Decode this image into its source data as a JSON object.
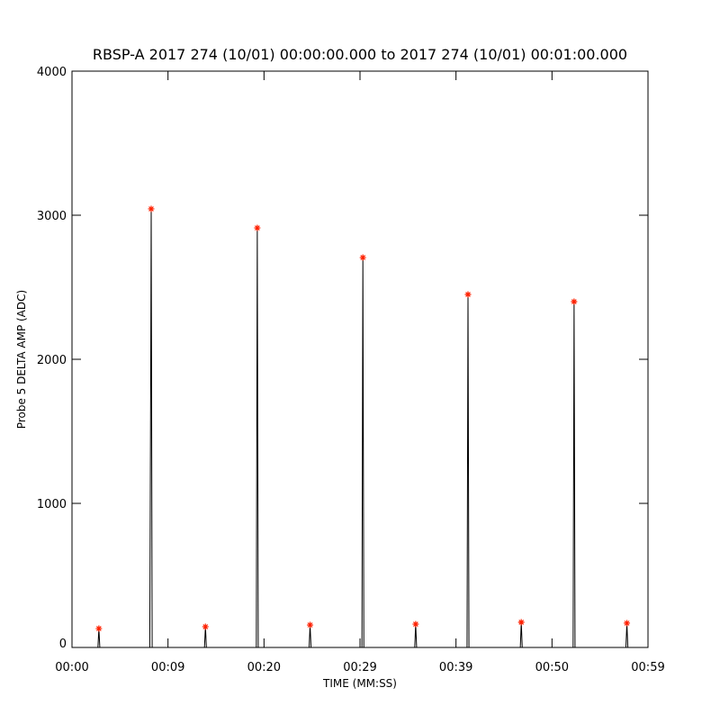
{
  "chart_data": {
    "type": "line",
    "title": "RBSP-A 2017 274 (10/01) 00:00:00.000 to 2017 274 (10/01) 00:01:00.000",
    "x_label": "TIME (MM:SS)",
    "y_label": "Probe 5 DELTA AMP (ADC)",
    "xlim": [
      0,
      60
    ],
    "ylim": [
      0,
      4000
    ],
    "xticks": [
      {
        "value": 0,
        "label": "00:00"
      },
      {
        "value": 10,
        "label": "00:09"
      },
      {
        "value": 20,
        "label": "00:20"
      },
      {
        "value": 30,
        "label": "00:29"
      },
      {
        "value": 40,
        "label": "00:39"
      },
      {
        "value": 50,
        "label": "00:50"
      },
      {
        "value": 60,
        "label": "00:59"
      }
    ],
    "yticks": [
      0,
      1000,
      2000,
      3000,
      4000
    ],
    "line": {
      "color": "#000000",
      "x": [
        0,
        2.7,
        2.8,
        2.9,
        8.1,
        8.2,
        8.25,
        8.35,
        13.8,
        13.9,
        14.0,
        19.2,
        19.3,
        19.4,
        24.7,
        24.8,
        24.9,
        30.2,
        30.3,
        30.4,
        35.7,
        35.8,
        35.9,
        41.15,
        41.25,
        41.35,
        46.7,
        46.8,
        46.9,
        52.2,
        52.3,
        52.4,
        57.7,
        57.8,
        57.9,
        60
      ],
      "values": [
        0,
        0,
        131,
        0,
        0,
        1900,
        3044,
        0,
        0,
        144,
        0,
        0,
        2912,
        0,
        0,
        156,
        0,
        0,
        2706,
        0,
        0,
        162,
        0,
        0,
        2450,
        0,
        0,
        175,
        0,
        0,
        2400,
        0,
        0,
        169,
        0,
        0
      ]
    },
    "peaks": {
      "color": "#ff2000",
      "x": [
        2.8,
        8.25,
        13.9,
        19.3,
        24.8,
        30.3,
        35.8,
        41.25,
        46.8,
        52.3,
        57.8
      ],
      "values": [
        131,
        3044,
        144,
        2912,
        156,
        2706,
        162,
        2450,
        175,
        2400,
        169
      ]
    }
  }
}
